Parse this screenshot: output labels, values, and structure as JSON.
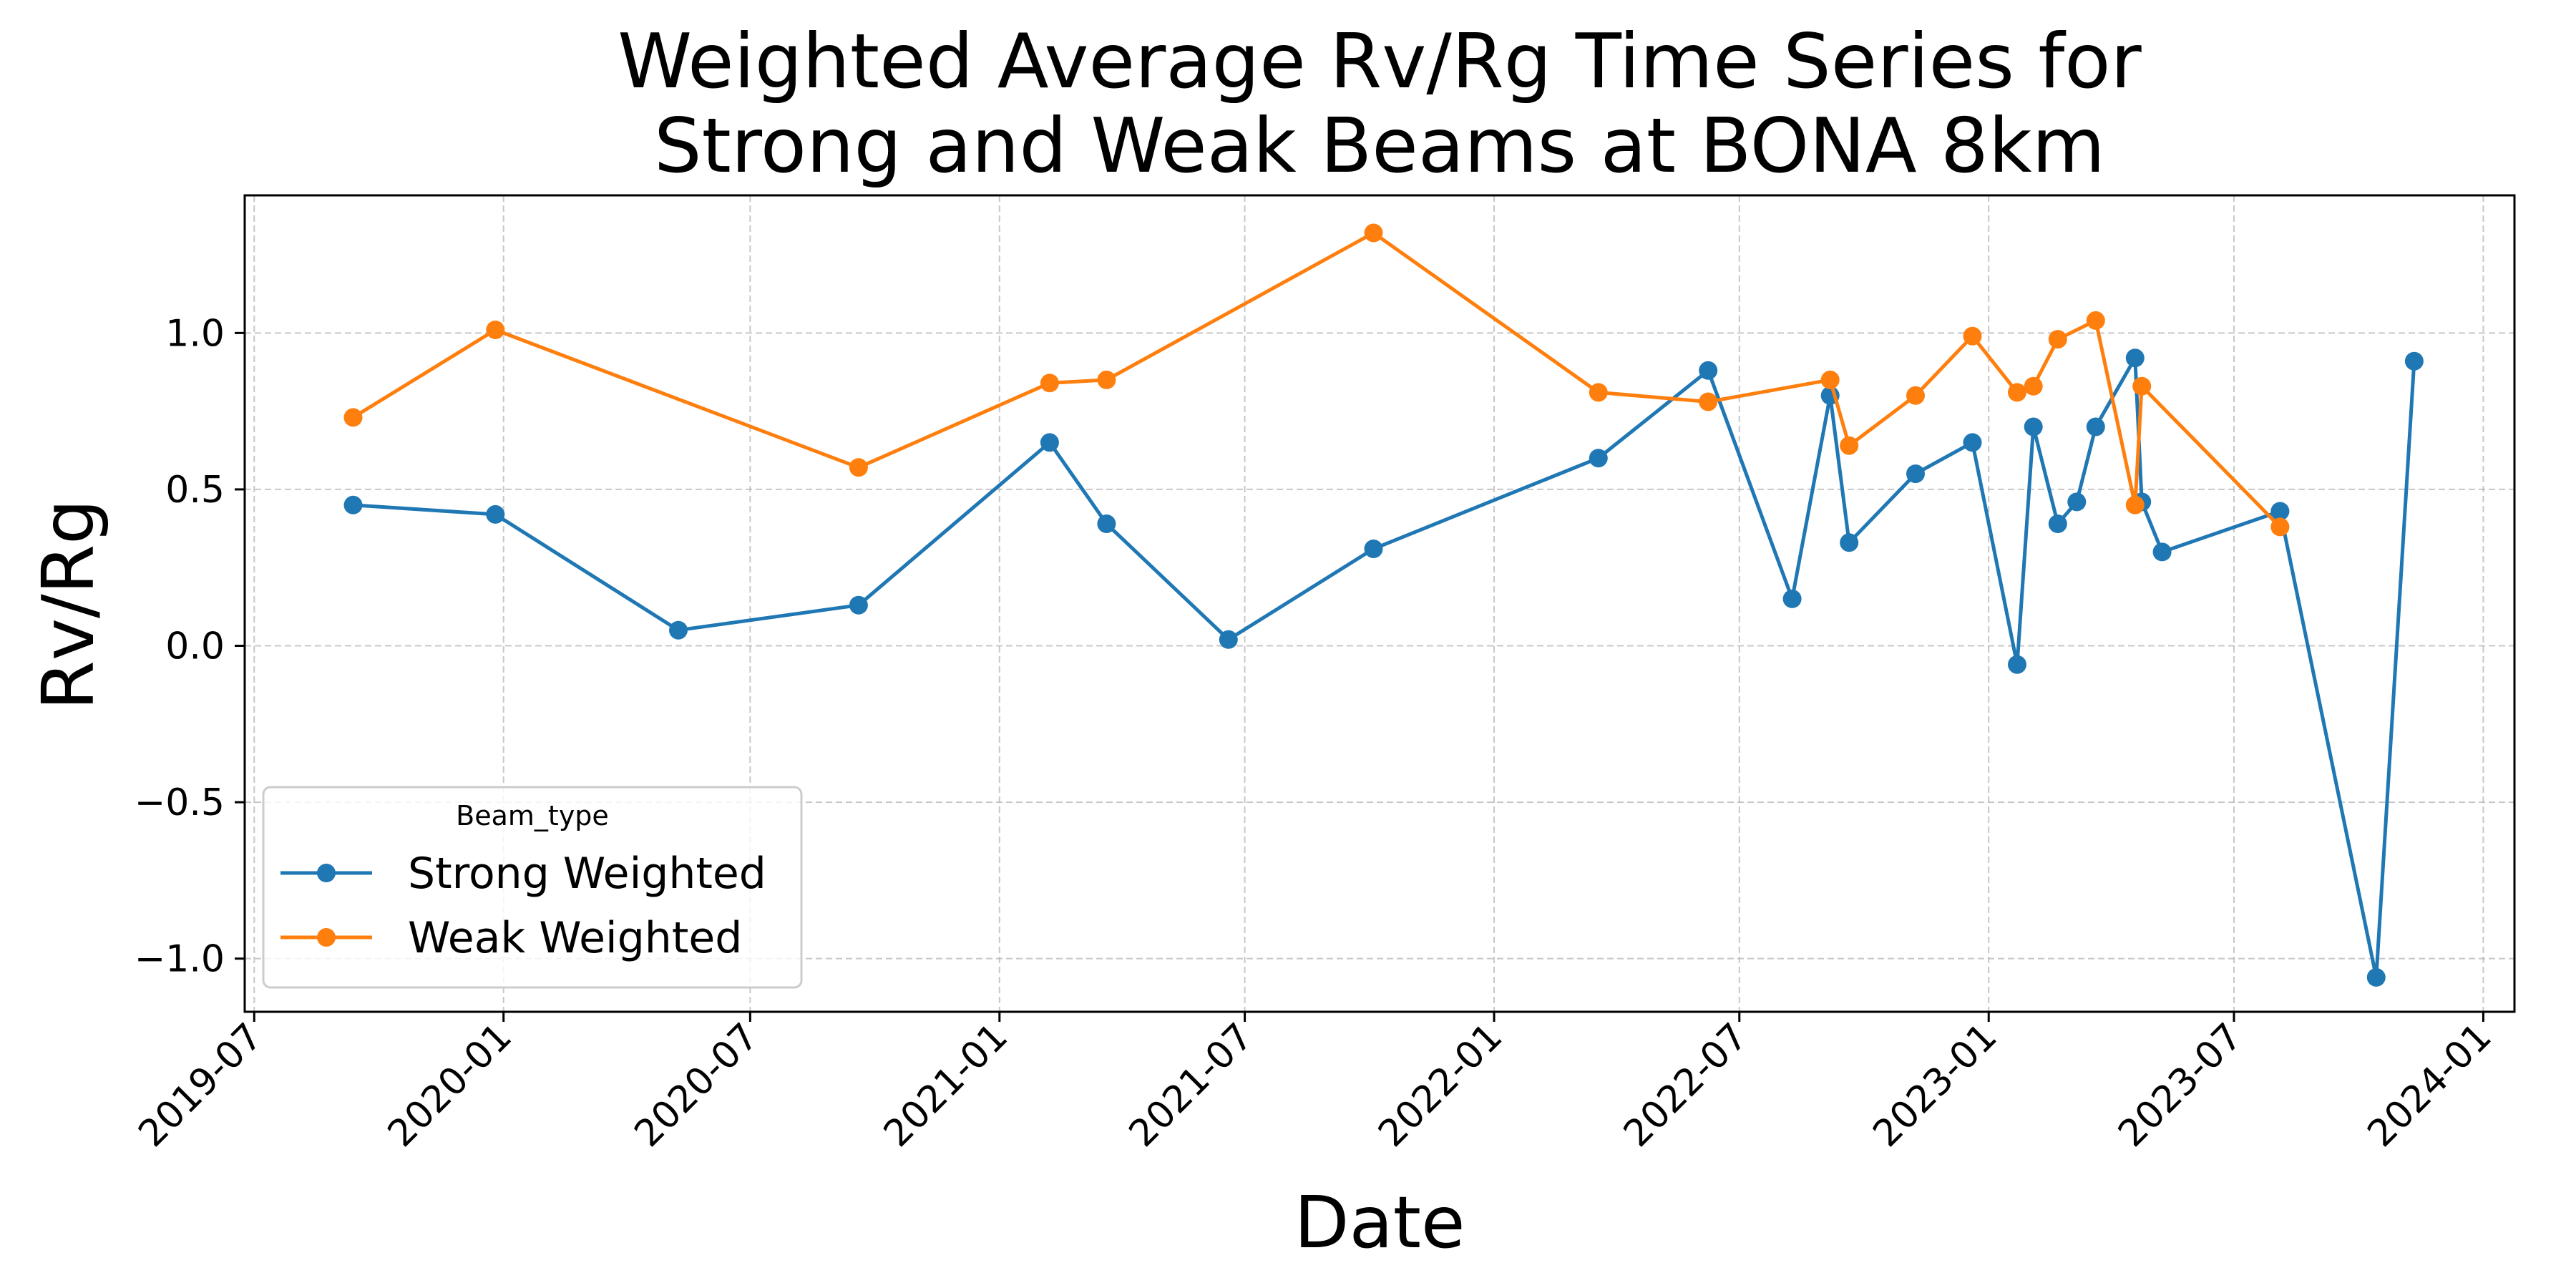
{
  "chart_data": {
    "type": "line",
    "title": [
      "Weighted Average Rv/Rg Time Series for",
      "Strong and Weak Beams at BONA 8km"
    ],
    "xlabel": "Date",
    "ylabel": "Rv/Rg",
    "xlim": [
      "2019-06-24",
      "2024-01-24"
    ],
    "ylim": [
      -1.17,
      1.44
    ],
    "x_ticks": [
      "2019-07-01",
      "2020-01-01",
      "2020-07-01",
      "2021-01-01",
      "2021-07-01",
      "2022-01-01",
      "2022-07-01",
      "2023-01-01",
      "2023-07-01",
      "2024-01-01"
    ],
    "x_tick_labels": [
      "2019-07",
      "2020-01",
      "2020-07",
      "2021-01",
      "2021-07",
      "2022-01",
      "2022-07",
      "2023-01",
      "2023-07",
      "2024-01"
    ],
    "y_ticks": [
      1.0,
      0.5,
      0.0,
      -0.5,
      -1.0
    ],
    "y_tick_labels": [
      "1.0",
      "0.5",
      "0.0",
      "−0.5",
      "−1.0"
    ],
    "grid": true,
    "legend": {
      "title": "Beam_type",
      "placement": "lower-left"
    },
    "series": [
      {
        "name": "Strong Weighted",
        "color": "#1f77b4",
        "points": [
          {
            "x": "2019-09-12",
            "y": 0.45
          },
          {
            "x": "2019-12-26",
            "y": 0.42
          },
          {
            "x": "2020-05-09",
            "y": 0.05
          },
          {
            "x": "2020-09-19",
            "y": 0.13
          },
          {
            "x": "2021-02-07",
            "y": 0.65
          },
          {
            "x": "2021-03-21",
            "y": 0.39
          },
          {
            "x": "2021-06-19",
            "y": 0.02
          },
          {
            "x": "2021-10-04",
            "y": 0.31
          },
          {
            "x": "2022-03-19",
            "y": 0.6
          },
          {
            "x": "2022-06-08",
            "y": 0.88
          },
          {
            "x": "2022-08-09",
            "y": 0.15
          },
          {
            "x": "2022-09-06",
            "y": 0.8
          },
          {
            "x": "2022-09-20",
            "y": 0.33
          },
          {
            "x": "2022-11-08",
            "y": 0.55
          },
          {
            "x": "2022-12-20",
            "y": 0.65
          },
          {
            "x": "2023-01-22",
            "y": -0.06
          },
          {
            "x": "2023-02-03",
            "y": 0.7
          },
          {
            "x": "2023-02-21",
            "y": 0.39
          },
          {
            "x": "2023-03-07",
            "y": 0.46
          },
          {
            "x": "2023-03-21",
            "y": 0.7
          },
          {
            "x": "2023-04-19",
            "y": 0.92
          },
          {
            "x": "2023-04-24",
            "y": 0.46
          },
          {
            "x": "2023-05-09",
            "y": 0.3
          },
          {
            "x": "2023-08-04",
            "y": 0.43
          },
          {
            "x": "2023-10-14",
            "y": -1.06
          },
          {
            "x": "2023-11-11",
            "y": 0.91
          }
        ]
      },
      {
        "name": "Weak Weighted",
        "color": "#ff7f0e",
        "points": [
          {
            "x": "2019-09-12",
            "y": 0.73
          },
          {
            "x": "2019-12-26",
            "y": 1.01
          },
          {
            "x": "2020-09-19",
            "y": 0.57
          },
          {
            "x": "2021-02-07",
            "y": 0.84
          },
          {
            "x": "2021-03-21",
            "y": 0.85
          },
          {
            "x": "2021-10-04",
            "y": 1.32
          },
          {
            "x": "2022-03-19",
            "y": 0.81
          },
          {
            "x": "2022-06-08",
            "y": 0.78
          },
          {
            "x": "2022-09-06",
            "y": 0.85
          },
          {
            "x": "2022-09-20",
            "y": 0.64
          },
          {
            "x": "2022-11-08",
            "y": 0.8
          },
          {
            "x": "2022-12-20",
            "y": 0.99
          },
          {
            "x": "2023-01-22",
            "y": 0.81
          },
          {
            "x": "2023-02-03",
            "y": 0.83
          },
          {
            "x": "2023-02-21",
            "y": 0.98
          },
          {
            "x": "2023-03-21",
            "y": 1.04
          },
          {
            "x": "2023-04-19",
            "y": 0.45
          },
          {
            "x": "2023-04-24",
            "y": 0.83
          },
          {
            "x": "2023-08-04",
            "y": 0.38
          }
        ]
      }
    ]
  }
}
